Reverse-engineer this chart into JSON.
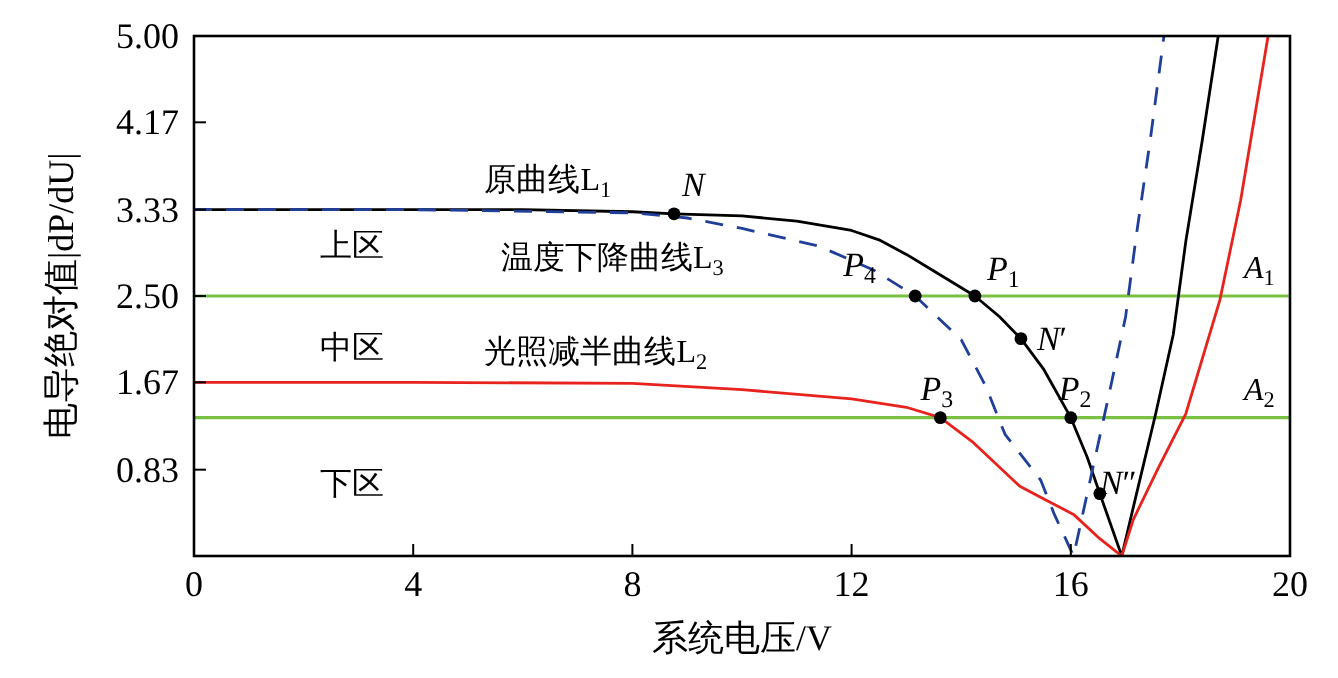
{
  "chart_data": {
    "type": "line",
    "xlabel": "系统电压/V",
    "ylabel": "电导绝对值|dP/dU|",
    "marker": "none",
    "xlim": [
      0,
      20
    ],
    "ylim": [
      0,
      5
    ],
    "xticks": [
      0,
      4,
      8,
      12,
      16,
      20
    ],
    "yticks": [
      {
        "value": 0.83,
        "label": "0.83"
      },
      {
        "value": 1.67,
        "label": "1.67"
      },
      {
        "value": 2.5,
        "label": "2.50"
      },
      {
        "value": 3.33,
        "label": "3.33"
      },
      {
        "value": 4.17,
        "label": "4.17"
      },
      {
        "value": 5,
        "label": "5.00"
      }
    ],
    "series": [
      {
        "name": "原曲线L$_{1}$",
        "color": "#000000",
        "line_style": "solid",
        "x": [
          0,
          2,
          4,
          6,
          8,
          8.76,
          10,
          11,
          12,
          12.5,
          13,
          13.5,
          14.25,
          14.7,
          15.09,
          15.5,
          16.0,
          16.3,
          16.53,
          16.93,
          17.2,
          17.55,
          17.87,
          18.1,
          18.4,
          18.69
        ],
        "values": [
          3.33,
          3.33,
          3.33,
          3.33,
          3.31,
          3.29,
          3.27,
          3.22,
          3.13,
          3.04,
          2.9,
          2.74,
          2.5,
          2.3,
          2.09,
          1.8,
          1.33,
          0.95,
          0.6,
          0,
          0.6,
          1.37,
          2.13,
          3.03,
          4.0,
          5.0
        ]
      },
      {
        "name": "光照减半曲线L$_{2}$",
        "color": "#e8231e",
        "line_style": "solid",
        "x": [
          0,
          4,
          8,
          10,
          12,
          13.0,
          13.62,
          14.2,
          15.07,
          15.5,
          16.05,
          16.5,
          16.93,
          17.14,
          17.6,
          18.1,
          18.72,
          19.1,
          19.6
        ],
        "values": [
          1.67,
          1.67,
          1.66,
          1.6,
          1.51,
          1.43,
          1.33,
          1.1,
          0.67,
          0.55,
          0.4,
          0.18,
          0,
          0.35,
          0.85,
          1.37,
          2.46,
          3.42,
          5.0
        ]
      },
      {
        "name": "温度下降曲线L$_{3}$",
        "color": "#1f3f9a",
        "line_style": "dashed",
        "x": [
          0,
          4,
          8,
          9,
          10,
          11.4,
          12.4,
          13.16,
          14.0,
          14.45,
          14.8,
          15.45,
          15.7,
          16.05,
          16.3,
          16.7,
          17.0,
          17.2,
          17.45,
          17.7
        ],
        "values": [
          3.33,
          3.33,
          3.3,
          3.25,
          3.15,
          2.98,
          2.75,
          2.5,
          2.08,
          1.63,
          1.17,
          0.73,
          0.4,
          0,
          0.6,
          1.56,
          2.3,
          3.1,
          4.0,
          5.0
        ]
      }
    ],
    "ref_lines": [
      {
        "axis": "y",
        "value": 2.5,
        "label": "*A*$_{1}$",
        "color": "#7ac143"
      },
      {
        "axis": "y",
        "value": 1.33,
        "label": "*A*$_{2}$",
        "color": "#7ac143"
      }
    ],
    "annotations": [
      {
        "text": "*N*",
        "x": 8.76,
        "y": 3.29
      },
      {
        "text": "*P*$_{4}$",
        "x": 13.16,
        "y": 2.5
      },
      {
        "text": "*P*$_{1}$",
        "x": 14.25,
        "y": 2.5
      },
      {
        "text": "*N*′",
        "x": 15.09,
        "y": 2.09
      },
      {
        "text": "*P*$_{2}$",
        "x": 16.0,
        "y": 1.33
      },
      {
        "text": "*N*″",
        "x": 16.53,
        "y": 0.6
      },
      {
        "text": "*P*$_{3}$",
        "x": 13.62,
        "y": 1.33
      },
      "上区",
      "中区",
      "下区"
    ]
  }
}
